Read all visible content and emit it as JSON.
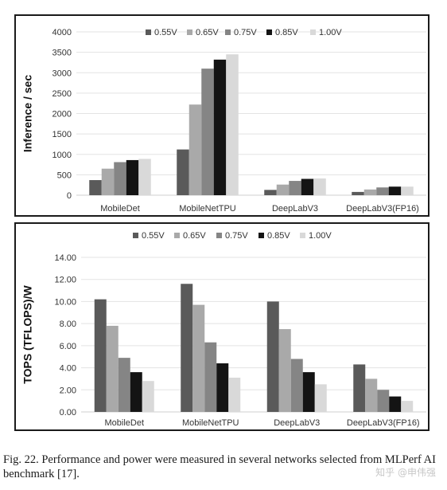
{
  "chart_data": [
    {
      "type": "bar",
      "ylabel": "Inference / sec",
      "ylim": [
        0,
        4000
      ],
      "yticks": [
        "0",
        "500",
        "1000",
        "1500",
        "2000",
        "2500",
        "3000",
        "3500",
        "4000"
      ],
      "ytick_values": [
        0,
        500,
        1000,
        1500,
        2000,
        2500,
        3000,
        3500,
        4000
      ],
      "categories": [
        "MobileDet",
        "MobileNetTPU",
        "DeepLabV3",
        "DeepLabV3(FP16)"
      ],
      "legend_position": "top",
      "series": [
        {
          "name": "0.55V",
          "color": "#5a5a5a",
          "values": [
            370,
            1120,
            130,
            80
          ]
        },
        {
          "name": "0.65V",
          "color": "#a9a9a9",
          "values": [
            650,
            2220,
            260,
            140
          ]
        },
        {
          "name": "0.75V",
          "color": "#858585",
          "values": [
            810,
            3100,
            350,
            190
          ]
        },
        {
          "name": "0.85V",
          "color": "#141414",
          "values": [
            860,
            3320,
            400,
            210
          ]
        },
        {
          "name": "1.00V",
          "color": "#d9d9d9",
          "values": [
            890,
            3450,
            410,
            210
          ]
        }
      ]
    },
    {
      "type": "bar",
      "ylabel": "TOPS (TFLOPS)/W",
      "ylim": [
        0,
        14
      ],
      "yticks": [
        "0.00",
        "2.00",
        "4.00",
        "6.00",
        "8.00",
        "10.00",
        "12.00",
        "14.00"
      ],
      "ytick_values": [
        0,
        2,
        4,
        6,
        8,
        10,
        12,
        14
      ],
      "categories": [
        "MobileDet",
        "MobileNetTPU",
        "DeepLabV3",
        "DeepLabV3(FP16)"
      ],
      "legend_position": "top",
      "series": [
        {
          "name": "0.55V",
          "color": "#5a5a5a",
          "values": [
            10.2,
            11.6,
            10.0,
            4.3
          ]
        },
        {
          "name": "0.65V",
          "color": "#a9a9a9",
          "values": [
            7.8,
            9.7,
            7.5,
            3.0
          ]
        },
        {
          "name": "0.75V",
          "color": "#858585",
          "values": [
            4.9,
            6.3,
            4.8,
            2.0
          ]
        },
        {
          "name": "0.85V",
          "color": "#141414",
          "values": [
            3.6,
            4.4,
            3.6,
            1.4
          ]
        },
        {
          "name": "1.00V",
          "color": "#d9d9d9",
          "values": [
            2.8,
            3.1,
            2.5,
            1.0
          ]
        }
      ]
    }
  ],
  "caption": "Fig. 22.   Performance and power were measured in several networks selected from MLPerf AI benchmark [17].",
  "watermark": "知乎 @申伟强"
}
